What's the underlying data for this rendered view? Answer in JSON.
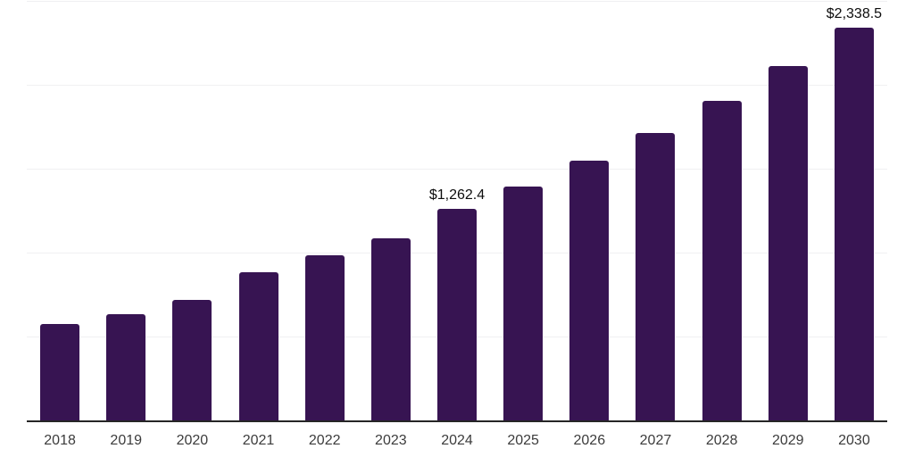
{
  "chart_data": {
    "type": "bar",
    "title": "",
    "xlabel": "",
    "ylabel": "",
    "categories": [
      "2018",
      "2019",
      "2020",
      "2021",
      "2022",
      "2023",
      "2024",
      "2025",
      "2026",
      "2027",
      "2028",
      "2029",
      "2030"
    ],
    "values": [
      573,
      633,
      716,
      885,
      982,
      1085,
      1262.4,
      1394,
      1548,
      1714,
      1905,
      2111,
      2338.5
    ],
    "data_labels": [
      {
        "category": "2024",
        "text": "$1,262.4"
      },
      {
        "category": "2030",
        "text": "$2,338.5"
      }
    ],
    "ylim": [
      0,
      2500
    ],
    "gridline_interval": 500,
    "grid": "horizontal-only, no y-axis tick labels, no legend, no title",
    "legend_position": "none",
    "bar_color": "#371452",
    "gridline_color": "#f0f0f2",
    "axis_line_color": "#262626",
    "tick_label_color": "#3c3c3c",
    "value_label_color": "#0d0d0d",
    "background_color": "#ffffff"
  }
}
